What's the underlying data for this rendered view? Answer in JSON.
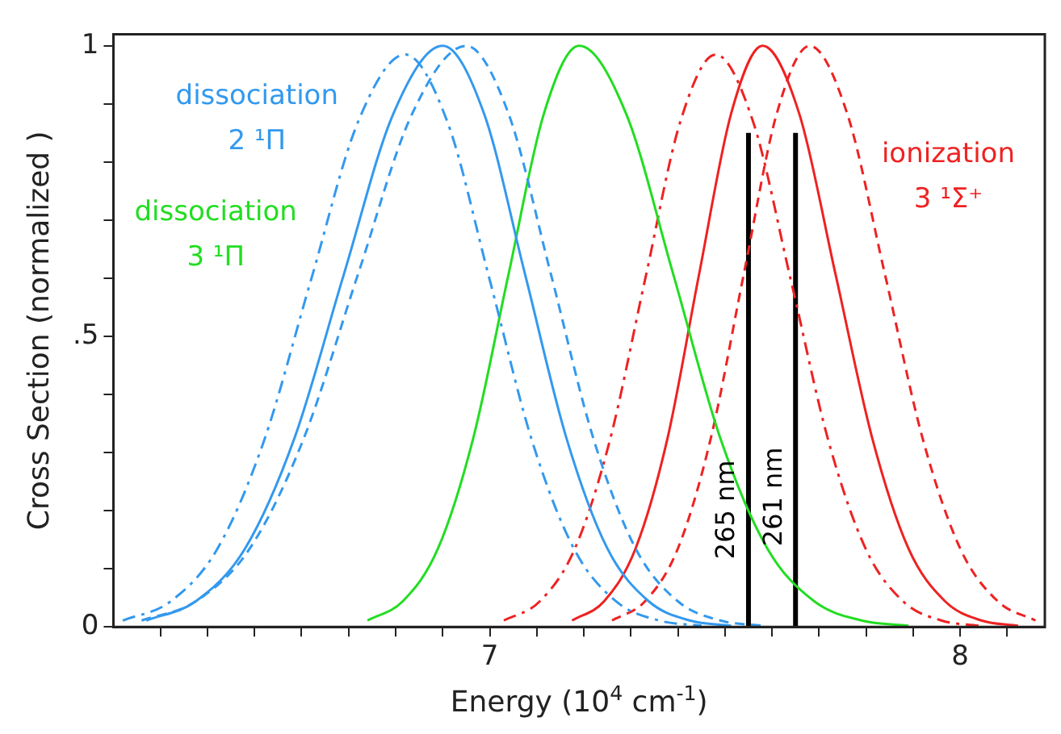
{
  "chart_data": {
    "type": "line",
    "xlabel": "Energy (10$^{4}$ cm$^{-1}$)",
    "ylabel": "Cross Section (normalized )",
    "xlim": [
      6.2,
      8.18
    ],
    "ylim": [
      0,
      1.02
    ],
    "xticks": [
      {
        "value": 6.3,
        "label": null
      },
      {
        "value": 6.4,
        "label": null
      },
      {
        "value": 6.5,
        "label": null
      },
      {
        "value": 6.6,
        "label": null
      },
      {
        "value": 6.7,
        "label": null
      },
      {
        "value": 6.8,
        "label": null
      },
      {
        "value": 6.9,
        "label": null
      },
      7,
      {
        "value": 7.1,
        "label": null
      },
      {
        "value": 7.2,
        "label": null
      },
      {
        "value": 7.3,
        "label": null
      },
      {
        "value": 7.4,
        "label": null
      },
      {
        "value": 7.5,
        "label": null
      },
      {
        "value": 7.6,
        "label": null
      },
      {
        "value": 7.7,
        "label": null
      },
      {
        "value": 7.8,
        "label": null
      },
      {
        "value": 7.9,
        "label": null
      },
      8,
      {
        "value": 8.1,
        "label": null
      }
    ],
    "yticks": [
      0,
      {
        "value": 0.1,
        "label": null
      },
      {
        "value": 0.2,
        "label": null
      },
      {
        "value": 0.3,
        "label": null
      },
      {
        "value": 0.4,
        "label": null
      },
      {
        "value": 0.5,
        "label": ".5"
      },
      {
        "value": 0.6,
        "label": null
      },
      {
        "value": 0.7,
        "label": null
      },
      {
        "value": 0.8,
        "label": null
      },
      {
        "value": 0.9,
        "label": null
      },
      1
    ],
    "grid": false,
    "legend": false,
    "marker": "none",
    "series": [
      {
        "name": "dissociation 2 ¹Π",
        "color": "#3399ee",
        "line_style": "solid",
        "x": [
          6.27,
          6.375,
          6.48,
          6.585,
          6.69,
          6.795,
          6.9,
          6.988,
          7.075,
          7.163,
          7.25,
          7.338,
          7.425,
          7.513
        ],
        "values": [
          0.011,
          0.044,
          0.135,
          0.325,
          0.607,
          0.883,
          1,
          0.883,
          0.607,
          0.325,
          0.135,
          0.044,
          0.011,
          0.002
        ]
      },
      {
        "color": "#3399ee",
        "line_style": "dashdot",
        "x": [
          6.22,
          6.32,
          6.42,
          6.52,
          6.62,
          6.72,
          6.82,
          6.91,
          7.0,
          7.09,
          7.18,
          7.27,
          7.36,
          7.45
        ],
        "values": [
          0.011,
          0.043,
          0.133,
          0.32,
          0.597,
          0.869,
          0.985,
          0.869,
          0.597,
          0.32,
          0.133,
          0.043,
          0.011,
          0.002
        ]
      },
      {
        "color": "#3399ee",
        "line_style": "dashed",
        "x": [
          6.26,
          6.375,
          6.49,
          6.605,
          6.72,
          6.835,
          6.95,
          7.04,
          7.13,
          7.22,
          7.31,
          7.4,
          7.49,
          7.58
        ],
        "values": [
          0.011,
          0.044,
          0.135,
          0.325,
          0.607,
          0.883,
          1,
          0.883,
          0.607,
          0.325,
          0.135,
          0.044,
          0.011,
          0.002
        ]
      },
      {
        "name": "dissociation 3 ¹Π",
        "color": "#22dd22",
        "line_style": "solid",
        "x": [
          6.74,
          6.815,
          6.89,
          6.965,
          7.04,
          7.115,
          7.19,
          7.29,
          7.39,
          7.49,
          7.59,
          7.69,
          7.79,
          7.89
        ],
        "values": [
          0.011,
          0.044,
          0.135,
          0.325,
          0.607,
          0.883,
          1,
          0.883,
          0.607,
          0.325,
          0.135,
          0.044,
          0.011,
          0.002
        ]
      },
      {
        "name": "ionization 3 ¹Σ⁺",
        "color": "#ee2222",
        "line_style": "solid",
        "x": [
          7.175,
          7.243,
          7.31,
          7.378,
          7.445,
          7.513,
          7.58,
          7.658,
          7.735,
          7.813,
          7.89,
          7.968,
          8.045,
          8.123
        ],
        "values": [
          0.011,
          0.044,
          0.135,
          0.325,
          0.607,
          0.883,
          1,
          0.883,
          0.607,
          0.325,
          0.135,
          0.044,
          0.011,
          0.002
        ]
      },
      {
        "color": "#ee2222",
        "line_style": "dashdot",
        "x": [
          7.03,
          7.105,
          7.18,
          7.255,
          7.33,
          7.405,
          7.48,
          7.56,
          7.64,
          7.72,
          7.8,
          7.88,
          7.96,
          8.04
        ],
        "values": [
          0.011,
          0.043,
          0.133,
          0.32,
          0.597,
          0.869,
          0.985,
          0.869,
          0.597,
          0.32,
          0.133,
          0.043,
          0.011,
          0.002
        ]
      },
      {
        "color": "#ee2222",
        "line_style": "dashed",
        "x": [
          7.26,
          7.33,
          7.4,
          7.47,
          7.54,
          7.61,
          7.68,
          7.76,
          7.84,
          7.92,
          8.0,
          8.08,
          8.16
        ],
        "values": [
          0.011,
          0.044,
          0.135,
          0.325,
          0.607,
          0.883,
          1,
          0.883,
          0.607,
          0.325,
          0.135,
          0.044,
          0.011
        ]
      },
      {
        "name": "265 nm",
        "color": "#000000",
        "line_style": "solid",
        "x": [
          7.55,
          7.55
        ],
        "values": [
          0,
          0.85
        ]
      },
      {
        "name": "261 nm",
        "color": "#000000",
        "line_style": "solid",
        "x": [
          7.65,
          7.65
        ],
        "values": [
          0,
          0.85
        ]
      }
    ]
  }
}
